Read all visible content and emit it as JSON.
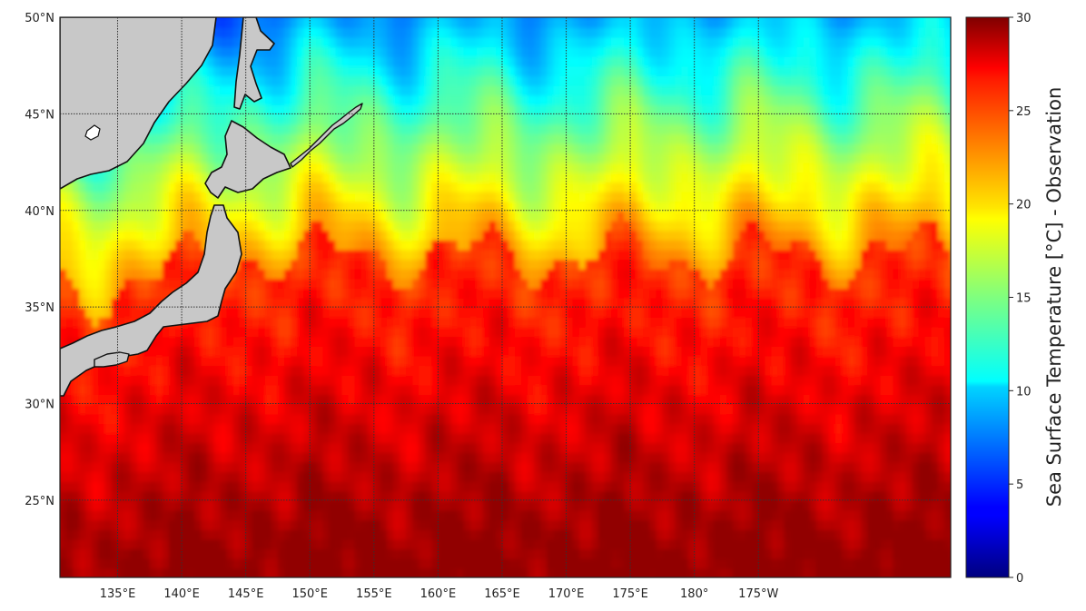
{
  "map": {
    "projection": "PlateCarree",
    "lon_range_east": [
      130.5,
      200.0
    ],
    "lat_range": [
      21.0,
      50.0
    ],
    "land_color": "#c8c8c8",
    "coastline_color": "#111111",
    "gridlines": "dotted",
    "gridline_color": "#333333",
    "lat_ticks": [
      {
        "value": 50,
        "label": "50°N"
      },
      {
        "value": 45,
        "label": "45°N"
      },
      {
        "value": 40,
        "label": "40°N"
      },
      {
        "value": 35,
        "label": "35°N"
      },
      {
        "value": 30,
        "label": "30°N"
      },
      {
        "value": 25,
        "label": "25°N"
      }
    ],
    "lon_ticks": [
      {
        "value": 135,
        "label": "135°E"
      },
      {
        "value": 140,
        "label": "140°E"
      },
      {
        "value": 145,
        "label": "145°E"
      },
      {
        "value": 150,
        "label": "150°E"
      },
      {
        "value": 155,
        "label": "155°E"
      },
      {
        "value": 160,
        "label": "160°E"
      },
      {
        "value": 165,
        "label": "165°E"
      },
      {
        "value": 170,
        "label": "170°E"
      },
      {
        "value": 175,
        "label": "175°E"
      },
      {
        "value": 180,
        "label": "180°"
      },
      {
        "value": 185,
        "label": "175°W"
      }
    ],
    "sst_field": {
      "variable": "Sea Surface Temperature",
      "units": "°C",
      "colormap": "jet",
      "note": "sea surface temperature increases from ~5–12 °C in the north-west (Okhotsk / off Kurils) to ~28–29 °C in the south; sharp front near 36–40°N"
    }
  },
  "colorbar": {
    "label": "Sea Surface Temperature [°C] - Observation",
    "min": 0,
    "max": 30,
    "ticks": [
      {
        "value": 0,
        "label": "0"
      },
      {
        "value": 5,
        "label": "5"
      },
      {
        "value": 10,
        "label": "10"
      },
      {
        "value": 15,
        "label": "15"
      },
      {
        "value": 20,
        "label": "20"
      },
      {
        "value": 25,
        "label": "25"
      },
      {
        "value": 30,
        "label": "30"
      }
    ]
  }
}
